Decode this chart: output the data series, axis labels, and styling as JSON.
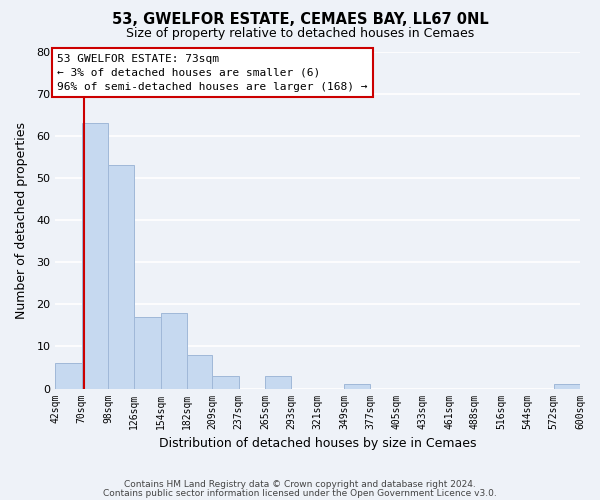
{
  "title": "53, GWELFOR ESTATE, CEMAES BAY, LL67 0NL",
  "subtitle": "Size of property relative to detached houses in Cemaes",
  "xlabel": "Distribution of detached houses by size in Cemaes",
  "ylabel": "Number of detached properties",
  "bar_color": "#c6d9f0",
  "bar_edge_color": "#a0b8d8",
  "bins": [
    "42sqm",
    "70sqm",
    "98sqm",
    "126sqm",
    "154sqm",
    "182sqm",
    "209sqm",
    "237sqm",
    "265sqm",
    "293sqm",
    "321sqm",
    "349sqm",
    "377sqm",
    "405sqm",
    "433sqm",
    "461sqm",
    "488sqm",
    "516sqm",
    "544sqm",
    "572sqm",
    "600sqm"
  ],
  "values": [
    6,
    63,
    53,
    17,
    18,
    8,
    3,
    0,
    3,
    0,
    0,
    1,
    0,
    0,
    0,
    0,
    0,
    0,
    0,
    1
  ],
  "ylim": [
    0,
    80
  ],
  "yticks": [
    0,
    10,
    20,
    30,
    40,
    50,
    60,
    70,
    80
  ],
  "bin_edges": [
    42,
    70,
    98,
    126,
    154,
    182,
    209,
    237,
    265,
    293,
    321,
    349,
    377,
    405,
    433,
    461,
    488,
    516,
    544,
    572,
    600
  ],
  "property_line_x": 73,
  "property_line_color": "#cc0000",
  "annotation_title": "53 GWELFOR ESTATE: 73sqm",
  "annotation_line1": "← 3% of detached houses are smaller (6)",
  "annotation_line2": "96% of semi-detached houses are larger (168) →",
  "annotation_box_color": "#ffffff",
  "annotation_box_edge": "#cc0000",
  "footer1": "Contains HM Land Registry data © Crown copyright and database right 2024.",
  "footer2": "Contains public sector information licensed under the Open Government Licence v3.0.",
  "background_color": "#eef2f8",
  "grid_color": "#ffffff"
}
